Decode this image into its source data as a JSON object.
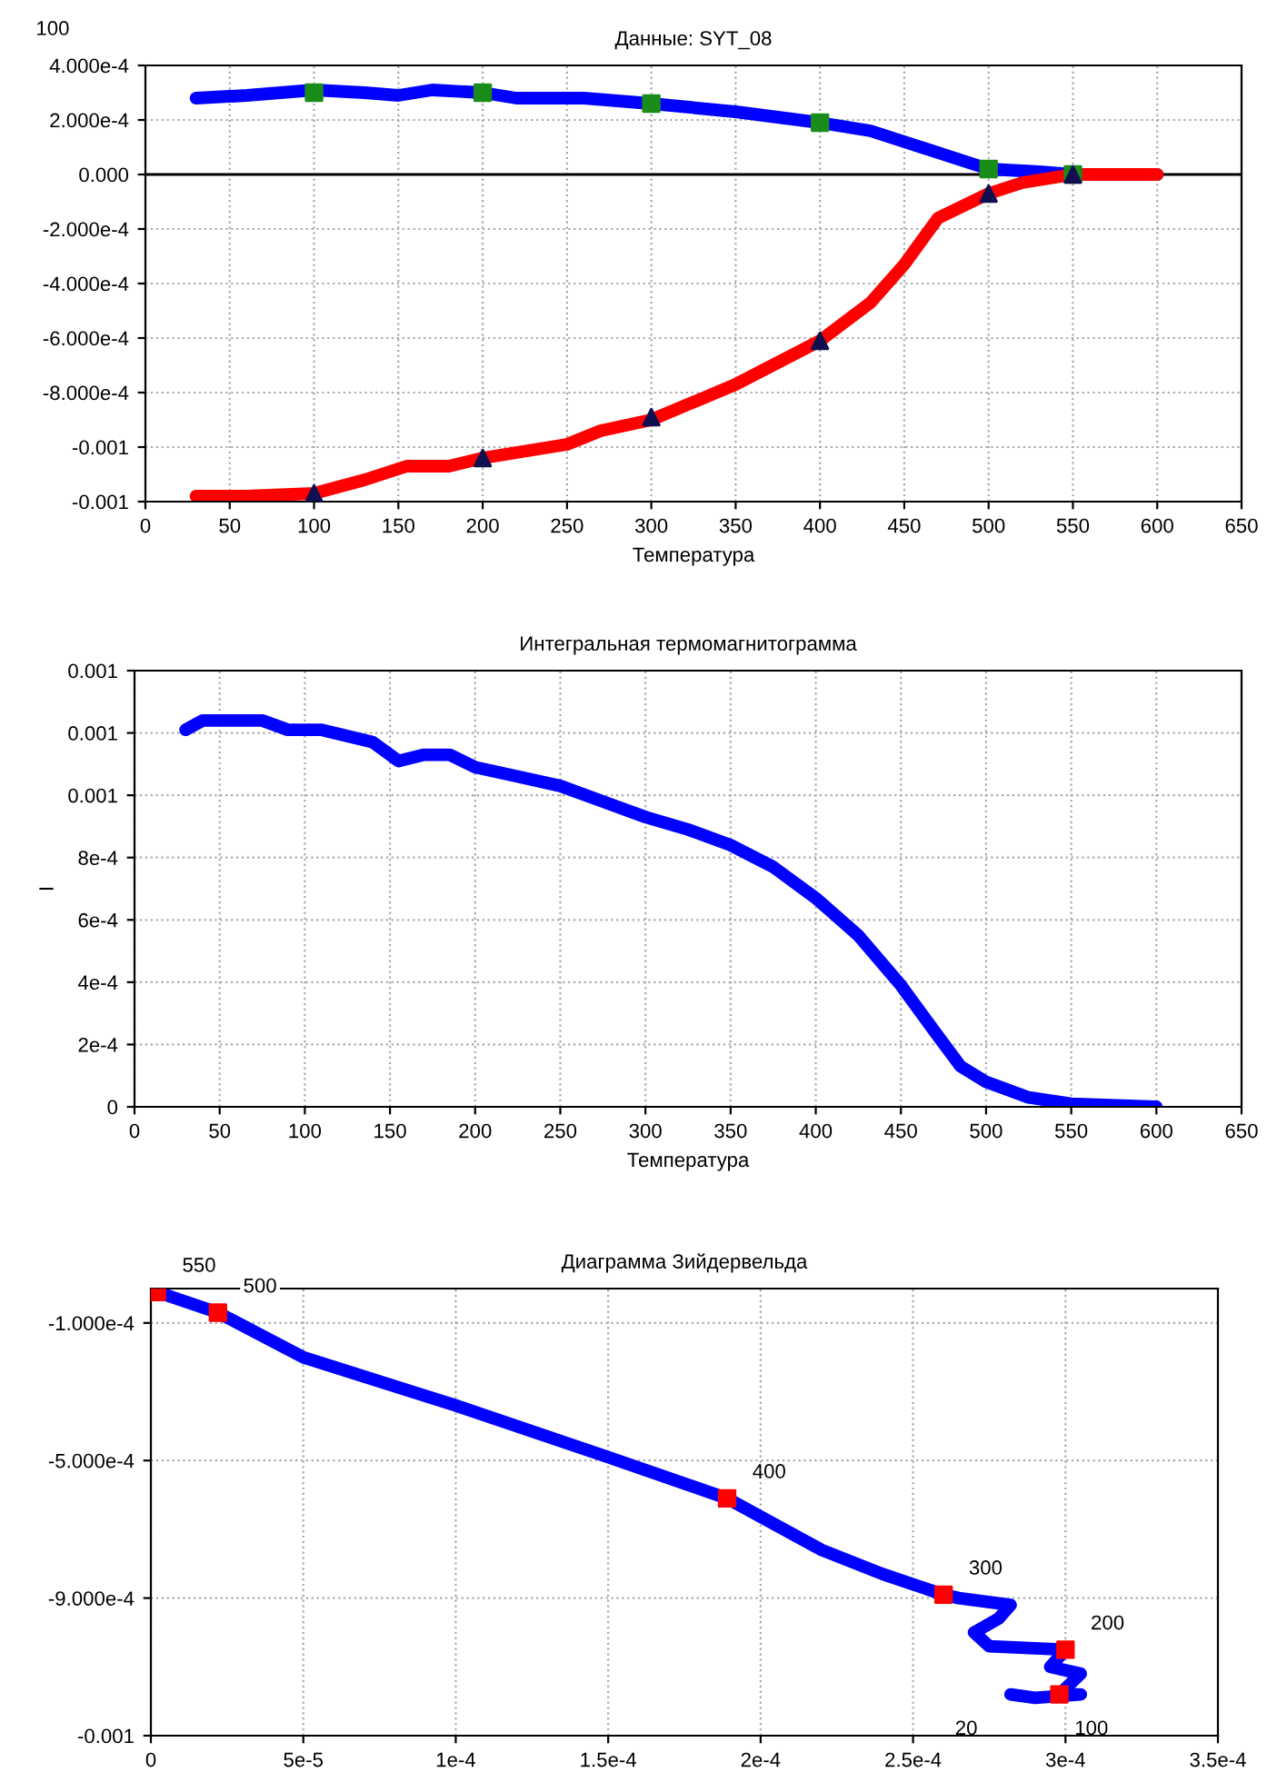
{
  "chart_data": [
    {
      "type": "line",
      "title": "Данные: SYT_08",
      "xlabel": "Температура",
      "annotations": [
        "100"
      ],
      "grid": true,
      "legend": false,
      "xlim": [
        0,
        650
      ],
      "xticks": [
        0,
        50,
        100,
        150,
        200,
        250,
        300,
        350,
        400,
        450,
        500,
        550,
        600,
        650
      ],
      "ylim": [
        -0.0012,
        0.0004
      ],
      "yticks": [
        {
          "value": 0.0004,
          "label": "4.000e-4"
        },
        {
          "value": 0.0002,
          "label": "2.000e-4"
        },
        {
          "value": 0,
          "label": "0.000"
        },
        {
          "value": -0.0002,
          "label": "-2.000e-4"
        },
        {
          "value": -0.0004,
          "label": "-4.000e-4"
        },
        {
          "value": -0.0006,
          "label": "-6.000e-4"
        },
        {
          "value": -0.0008,
          "label": "-8.000e-4"
        },
        {
          "value": -0.001,
          "label": "-0.001"
        },
        {
          "value": -0.0012,
          "label": "-0.001"
        }
      ],
      "ref_lines": [
        {
          "axis": "y",
          "value": 0,
          "color": "#000000"
        }
      ],
      "series": [
        {
          "color": "#0000ff",
          "x": [
            30,
            60,
            80,
            100,
            130,
            150,
            170,
            200,
            220,
            260,
            300,
            350,
            400,
            430,
            450,
            480,
            500,
            530,
            550,
            600
          ],
          "values": [
            0.00028,
            0.00029,
            0.0003,
            0.00031,
            0.0003,
            0.00029,
            0.00031,
            0.0003,
            0.00028,
            0.00028,
            0.00026,
            0.00023,
            0.00019,
            0.00016,
            0.00012,
            6e-05,
            2e-05,
            1e-05,
            0,
            0
          ]
        },
        {
          "color": "#ff0000",
          "x": [
            30,
            60,
            100,
            130,
            155,
            180,
            200,
            250,
            270,
            300,
            350,
            400,
            430,
            450,
            470,
            500,
            520,
            550,
            600
          ],
          "values": [
            -0.00118,
            -0.00118,
            -0.00117,
            -0.00112,
            -0.00107,
            -0.00107,
            -0.00104,
            -0.00099,
            -0.00094,
            -0.0009,
            -0.00077,
            -0.00061,
            -0.00047,
            -0.00033,
            -0.00016,
            -7e-05,
            -3e-05,
            0,
            0
          ]
        },
        {
          "type": "scatter",
          "marker": "square",
          "color": "#1a8c1a",
          "x": [
            100,
            200,
            300,
            400,
            500,
            550
          ],
          "values": [
            0.0003,
            0.0003,
            0.00026,
            0.00019,
            2e-05,
            0
          ]
        },
        {
          "type": "scatter",
          "marker": "triangle",
          "color": "#101050",
          "x": [
            100,
            200,
            300,
            400,
            500,
            550
          ],
          "values": [
            -0.00117,
            -0.00104,
            -0.00089,
            -0.00061,
            -7e-05,
            0
          ]
        }
      ]
    },
    {
      "type": "line",
      "title": "Интегральная термомагнитограмма",
      "xlabel": "Температура",
      "ylabel": "I",
      "grid": true,
      "legend": false,
      "xlim": [
        0,
        650
      ],
      "xticks": [
        0,
        50,
        100,
        150,
        200,
        250,
        300,
        350,
        400,
        450,
        500,
        550,
        600,
        650
      ],
      "ylim": [
        0,
        0.0014
      ],
      "yticks": [
        0,
        {
          "value": 0.0002,
          "label": "2e-4"
        },
        {
          "value": 0.0004,
          "label": "4e-4"
        },
        {
          "value": 0.0006,
          "label": "6e-4"
        },
        {
          "value": 0.0008,
          "label": "8e-4"
        },
        {
          "value": 0.001,
          "label": "0.001"
        },
        {
          "value": 0.0012,
          "label": "0.001"
        },
        {
          "value": 0.0014,
          "label": "0.001"
        }
      ],
      "series": [
        {
          "color": "#0000ff",
          "x": [
            30,
            40,
            75,
            90,
            110,
            140,
            155,
            170,
            185,
            200,
            225,
            250,
            275,
            300,
            325,
            350,
            375,
            400,
            425,
            450,
            470,
            485,
            500,
            525,
            550,
            600
          ],
          "values": [
            0.00121,
            0.00124,
            0.00124,
            0.00121,
            0.00121,
            0.00117,
            0.00111,
            0.00113,
            0.00113,
            0.00109,
            0.00106,
            0.00103,
            0.00098,
            0.00093,
            0.00089,
            0.00084,
            0.00077,
            0.00067,
            0.00055,
            0.00039,
            0.00024,
            0.00013,
            8e-05,
            3e-05,
            1e-05,
            0
          ]
        }
      ]
    },
    {
      "type": "line",
      "title": "Диаграмма Зийдервельда",
      "grid": true,
      "legend": false,
      "xlim": [
        0,
        0.00035
      ],
      "xticks": [
        0,
        {
          "value": 5e-05,
          "label": "5e-5"
        },
        {
          "value": 0.0001,
          "label": "1e-4"
        },
        {
          "value": 0.00015,
          "label": "1.5e-4"
        },
        {
          "value": 0.0002,
          "label": "2e-4"
        },
        {
          "value": 0.00025,
          "label": "2.5e-4"
        },
        {
          "value": 0.0003,
          "label": "3e-4"
        },
        {
          "value": 0.00035,
          "label": "3.5e-4"
        }
      ],
      "ylim": [
        -0.0013,
        0
      ],
      "yticks": [
        {
          "value": -0.0001,
          "label": "-1.000e-4"
        },
        {
          "value": -0.0005,
          "label": "-5.000e-4"
        },
        {
          "value": -0.0009,
          "label": "-9.000e-4"
        },
        {
          "value": -0.0013,
          "label": "-0.001"
        }
      ],
      "annotations": [
        {
          "text": "550",
          "x": 2e-06,
          "y": -1e-05
        },
        {
          "text": "500",
          "x": 2.2e-05,
          "y": -7e-05
        },
        {
          "text": "400",
          "x": 0.000189,
          "y": -0.00061
        },
        {
          "text": "300",
          "x": 0.00026,
          "y": -0.00089
        },
        {
          "text": "200",
          "x": 0.0003,
          "y": -0.00105
        },
        {
          "text": "100",
          "x": 0.000298,
          "y": -0.00118
        },
        {
          "text": "20",
          "x": 0.000282,
          "y": -0.00118
        }
      ],
      "series": [
        {
          "color": "#0000ff",
          "x": [
            0.000282,
            0.00029,
            0.000305,
            0.000298,
            0.000305,
            0.000295,
            0.0003,
            0.000275,
            0.00027,
            0.000278,
            0.000282,
            0.000265,
            0.00026,
            0.00024,
            0.00022,
            0.000189,
            0.00015,
            0.0001,
            5e-05,
            2.2e-05,
            2e-06
          ],
          "values": [
            -0.00118,
            -0.00119,
            -0.00118,
            -0.00118,
            -0.00112,
            -0.0011,
            -0.00105,
            -0.00104,
            -0.001,
            -0.00096,
            -0.00092,
            -0.0009,
            -0.00089,
            -0.00083,
            -0.00076,
            -0.00061,
            -0.00049,
            -0.00034,
            -0.0002,
            -7e-05,
            -1e-05
          ]
        },
        {
          "type": "scatter",
          "marker": "square",
          "color": "#ff0000",
          "x": [
            2e-06,
            2.2e-05,
            0.000189,
            0.00026,
            0.0003,
            0.000298
          ],
          "values": [
            -1e-05,
            -7e-05,
            -0.00061,
            -0.00089,
            -0.00105,
            -0.00118
          ]
        }
      ]
    }
  ]
}
